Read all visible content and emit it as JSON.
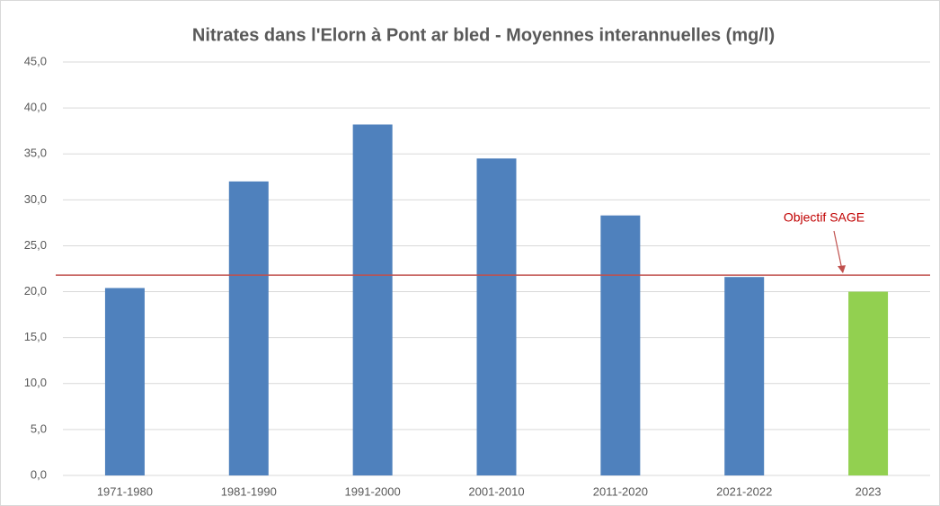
{
  "chart_data": {
    "type": "bar",
    "title": "Nitrates dans l'Elorn à Pont ar bled - Moyennes interannuelles (mg/l)",
    "categories": [
      "1971-1980",
      "1981-1990",
      "1991-2000",
      "2001-2010",
      "2011-2020",
      "2021-2022",
      "2023"
    ],
    "values": [
      20.4,
      32.0,
      38.2,
      34.5,
      28.3,
      21.6,
      20.0
    ],
    "colors": [
      "#4f81bd",
      "#4f81bd",
      "#4f81bd",
      "#4f81bd",
      "#4f81bd",
      "#4f81bd",
      "#92d050"
    ],
    "ylim": [
      0,
      45
    ],
    "yticks": [
      {
        "value": 0,
        "label": "0,0"
      },
      {
        "value": 5,
        "label": "5,0"
      },
      {
        "value": 10,
        "label": "10,0"
      },
      {
        "value": 15,
        "label": "15,0"
      },
      {
        "value": 20,
        "label": "20,0"
      },
      {
        "value": 25,
        "label": "25,0"
      },
      {
        "value": 30,
        "label": "30,0"
      },
      {
        "value": 35,
        "label": "35,0"
      },
      {
        "value": 40,
        "label": "40,0"
      },
      {
        "value": 45,
        "label": "45,0"
      }
    ],
    "grid": true,
    "reference_line": {
      "value": 21.8,
      "label": "Objectif SAGE",
      "color": "#c0504d"
    }
  }
}
